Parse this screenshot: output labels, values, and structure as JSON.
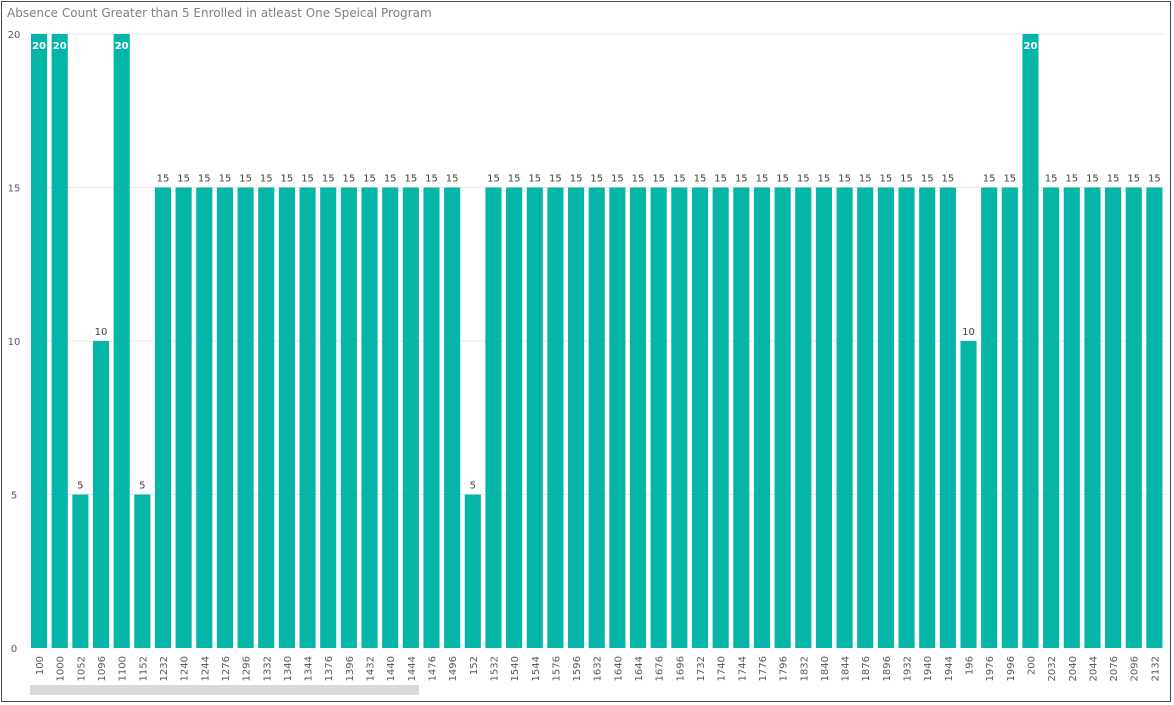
{
  "title": "Absence Count Greater than 5 Enrolled in atleast One Speical Program",
  "colors": {
    "bar": "#05b5a8",
    "grid": "#e8e8e8",
    "axis_text": "#595959",
    "label_text": "#404040",
    "inner_label_text": "#ffffff"
  },
  "chart_data": {
    "type": "bar",
    "title": "Absence Count Greater than 5 Enrolled in atleast One Speical Program",
    "xlabel": "",
    "ylabel": "",
    "ylim": [
      0,
      20
    ],
    "yticks": [
      0,
      5,
      10,
      15,
      20
    ],
    "grid": true,
    "categories": [
      "100",
      "1000",
      "1052",
      "1096",
      "1100",
      "1152",
      "1232",
      "1240",
      "1244",
      "1276",
      "1296",
      "1332",
      "1340",
      "1344",
      "1376",
      "1396",
      "1432",
      "1440",
      "1444",
      "1476",
      "1496",
      "152",
      "1532",
      "1540",
      "1544",
      "1576",
      "1596",
      "1632",
      "1640",
      "1644",
      "1676",
      "1696",
      "1732",
      "1740",
      "1744",
      "1776",
      "1796",
      "1832",
      "1840",
      "1844",
      "1876",
      "1896",
      "1932",
      "1940",
      "1944",
      "196",
      "1976",
      "1996",
      "200",
      "2032",
      "2040",
      "2044",
      "2076",
      "2096",
      "2132"
    ],
    "values": [
      20,
      20,
      5,
      10,
      20,
      5,
      15,
      15,
      15,
      15,
      15,
      15,
      15,
      15,
      15,
      15,
      15,
      15,
      15,
      15,
      15,
      5,
      15,
      15,
      15,
      15,
      15,
      15,
      15,
      15,
      15,
      15,
      15,
      15,
      15,
      15,
      15,
      15,
      15,
      15,
      15,
      15,
      15,
      15,
      15,
      10,
      15,
      15,
      20,
      15,
      15,
      15,
      15,
      15,
      15
    ],
    "data_labels": true,
    "scrollbar": true
  }
}
